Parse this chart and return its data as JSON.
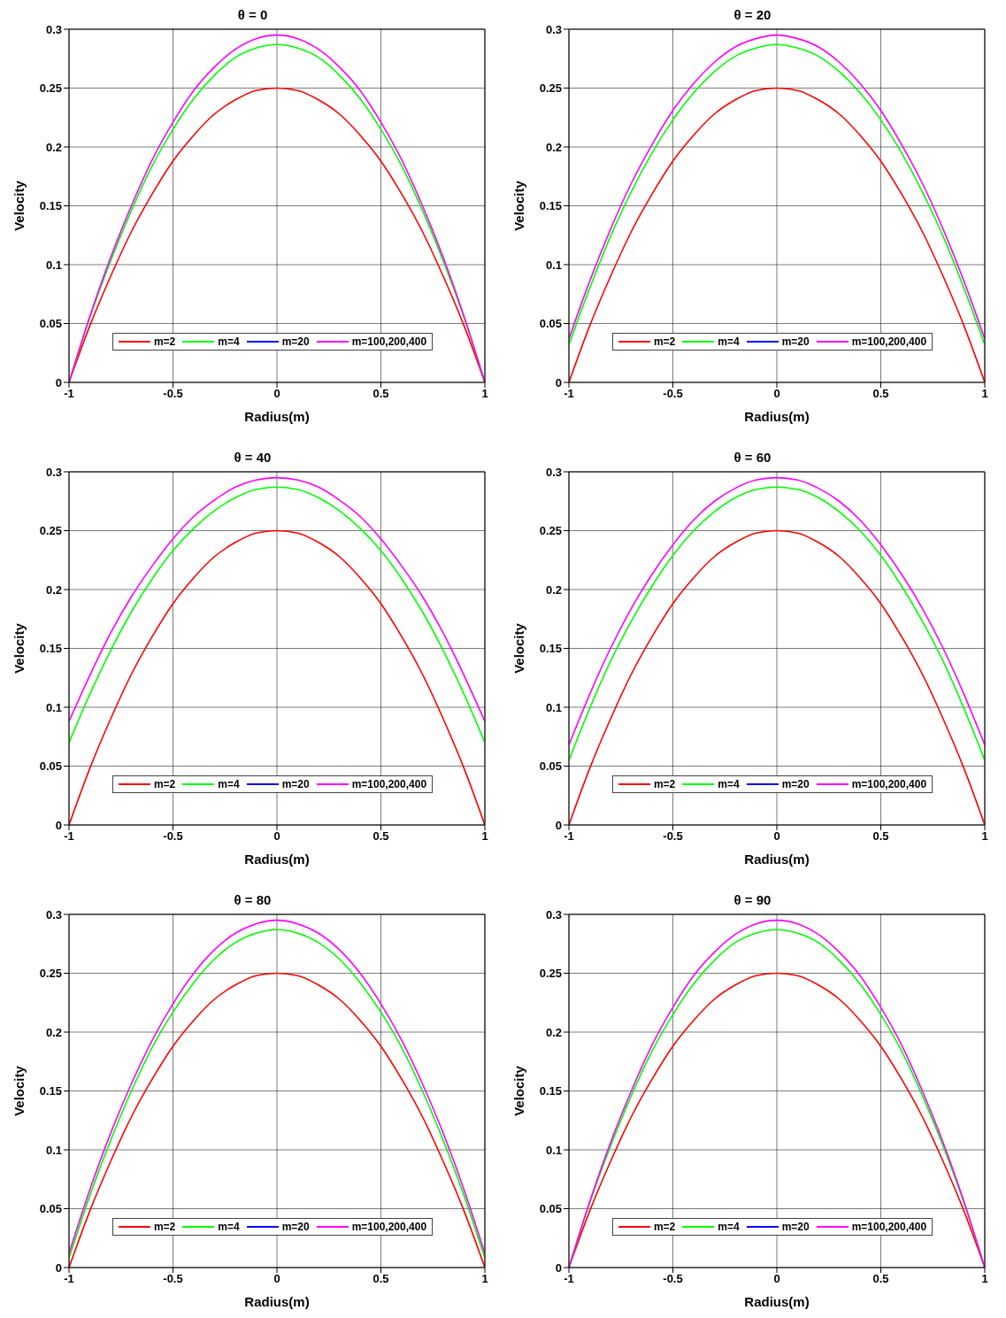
{
  "chart_data": [
    {
      "type": "line",
      "title": "θ = 0",
      "xlabel": "Radius(m)",
      "ylabel": "Velocity",
      "xlim": [
        -1,
        1
      ],
      "xticks": [
        -1,
        -0.5,
        0,
        0.5,
        1
      ],
      "ylim": [
        0,
        0.3
      ],
      "yticks": [
        0,
        0.05,
        0.1,
        0.15,
        0.2,
        0.25,
        0.3
      ],
      "grid": true,
      "legend": "bottom",
      "marker": "none",
      "line_style": "solid",
      "x": [
        -1,
        -0.9,
        -0.8,
        -0.7,
        -0.6,
        -0.5,
        -0.4,
        -0.3,
        -0.2,
        -0.1,
        0,
        0.1,
        0.2,
        0.3,
        0.4,
        0.5,
        0.6,
        0.7,
        0.8,
        0.9,
        1
      ],
      "series": [
        {
          "name": "m=2",
          "color": "#ff0000",
          "values": [
            0,
            0.048,
            0.09,
            0.128,
            0.16,
            0.188,
            0.21,
            0.228,
            0.24,
            0.248,
            0.25,
            0.248,
            0.24,
            0.228,
            0.21,
            0.188,
            0.16,
            0.128,
            0.09,
            0.048,
            0
          ]
        },
        {
          "name": "m=4",
          "color": "#00ff00",
          "values": [
            0,
            0.055,
            0.103,
            0.146,
            0.184,
            0.215,
            0.241,
            0.261,
            0.276,
            0.284,
            0.287,
            0.284,
            0.276,
            0.261,
            0.241,
            0.215,
            0.184,
            0.146,
            0.103,
            0.055,
            0
          ]
        },
        {
          "name": "m=20",
          "color": "#0000ff",
          "values": [
            null,
            null,
            null,
            null,
            null,
            null,
            null,
            null,
            null,
            null,
            null,
            null,
            null,
            null,
            null,
            null,
            null,
            null,
            null,
            null,
            null
          ]
        },
        {
          "name": "m=100,200,400",
          "color": "#ff00ff",
          "values": [
            0,
            0.056,
            0.106,
            0.15,
            0.189,
            0.221,
            0.248,
            0.268,
            0.283,
            0.292,
            0.295,
            0.292,
            0.283,
            0.268,
            0.248,
            0.221,
            0.189,
            0.15,
            0.106,
            0.056,
            0
          ]
        }
      ]
    },
    {
      "type": "line",
      "title": "θ = 20",
      "xlabel": "Radius(m)",
      "ylabel": "Velocity",
      "xlim": [
        -1,
        1
      ],
      "xticks": [
        -1,
        -0.5,
        0,
        0.5,
        1
      ],
      "ylim": [
        0,
        0.3
      ],
      "yticks": [
        0,
        0.05,
        0.1,
        0.15,
        0.2,
        0.25,
        0.3
      ],
      "grid": true,
      "legend": "bottom",
      "marker": "none",
      "line_style": "solid",
      "x": [
        -1,
        -0.9,
        -0.8,
        -0.7,
        -0.6,
        -0.5,
        -0.4,
        -0.3,
        -0.2,
        -0.1,
        0,
        0.1,
        0.2,
        0.3,
        0.4,
        0.5,
        0.6,
        0.7,
        0.8,
        0.9,
        1
      ],
      "series": [
        {
          "name": "m=2",
          "color": "#ff0000",
          "values": [
            0,
            0.048,
            0.09,
            0.128,
            0.16,
            0.188,
            0.21,
            0.228,
            0.24,
            0.248,
            0.25,
            0.248,
            0.24,
            0.228,
            0.21,
            0.188,
            0.16,
            0.128,
            0.09,
            0.048,
            0
          ]
        },
        {
          "name": "m=4",
          "color": "#00ff00",
          "values": [
            0.032,
            0.08,
            0.124,
            0.162,
            0.195,
            0.223,
            0.246,
            0.264,
            0.277,
            0.284,
            0.287,
            0.284,
            0.277,
            0.264,
            0.246,
            0.223,
            0.195,
            0.162,
            0.124,
            0.08,
            0.032
          ]
        },
        {
          "name": "m=20",
          "color": "#0000ff",
          "values": [
            null,
            null,
            null,
            null,
            null,
            null,
            null,
            null,
            null,
            null,
            null,
            null,
            null,
            null,
            null,
            null,
            null,
            null,
            null,
            null,
            null
          ]
        },
        {
          "name": "m=100,200,400",
          "color": "#ff00ff",
          "values": [
            0.037,
            0.086,
            0.13,
            0.169,
            0.202,
            0.231,
            0.254,
            0.272,
            0.285,
            0.292,
            0.295,
            0.292,
            0.285,
            0.272,
            0.254,
            0.231,
            0.202,
            0.169,
            0.13,
            0.086,
            0.037
          ]
        }
      ]
    },
    {
      "type": "line",
      "title": "θ = 40",
      "xlabel": "Radius(m)",
      "ylabel": "Velocity",
      "xlim": [
        -1,
        1
      ],
      "xticks": [
        -1,
        -0.5,
        0,
        0.5,
        1
      ],
      "ylim": [
        0,
        0.3
      ],
      "yticks": [
        0,
        0.05,
        0.1,
        0.15,
        0.2,
        0.25,
        0.3
      ],
      "grid": true,
      "legend": "bottom",
      "marker": "none",
      "line_style": "solid",
      "x": [
        -1,
        -0.9,
        -0.8,
        -0.7,
        -0.6,
        -0.5,
        -0.4,
        -0.3,
        -0.2,
        -0.1,
        0,
        0.1,
        0.2,
        0.3,
        0.4,
        0.5,
        0.6,
        0.7,
        0.8,
        0.9,
        1
      ],
      "series": [
        {
          "name": "m=2",
          "color": "#ff0000",
          "values": [
            0,
            0.048,
            0.09,
            0.128,
            0.16,
            0.188,
            0.21,
            0.228,
            0.24,
            0.248,
            0.25,
            0.248,
            0.24,
            0.228,
            0.21,
            0.188,
            0.16,
            0.128,
            0.09,
            0.048,
            0
          ]
        },
        {
          "name": "m=4",
          "color": "#00ff00",
          "values": [
            0.07,
            0.111,
            0.148,
            0.181,
            0.209,
            0.233,
            0.252,
            0.267,
            0.278,
            0.285,
            0.287,
            0.285,
            0.278,
            0.267,
            0.252,
            0.233,
            0.209,
            0.181,
            0.148,
            0.111,
            0.07
          ]
        },
        {
          "name": "m=20",
          "color": "#0000ff",
          "values": [
            null,
            null,
            null,
            null,
            null,
            null,
            null,
            null,
            null,
            null,
            null,
            null,
            null,
            null,
            null,
            null,
            null,
            null,
            null,
            null,
            null
          ]
        },
        {
          "name": "m=100,200,400",
          "color": "#ff00ff",
          "values": [
            0.088,
            0.127,
            0.163,
            0.194,
            0.22,
            0.243,
            0.262,
            0.276,
            0.287,
            0.293,
            0.295,
            0.293,
            0.287,
            0.276,
            0.262,
            0.243,
            0.22,
            0.194,
            0.163,
            0.127,
            0.088
          ]
        }
      ]
    },
    {
      "type": "line",
      "title": "θ = 60",
      "xlabel": "Radius(m)",
      "ylabel": "Velocity",
      "xlim": [
        -1,
        1
      ],
      "xticks": [
        -1,
        -0.5,
        0,
        0.5,
        1
      ],
      "ylim": [
        0,
        0.3
      ],
      "yticks": [
        0,
        0.05,
        0.1,
        0.15,
        0.2,
        0.25,
        0.3
      ],
      "grid": true,
      "legend": "bottom",
      "marker": "none",
      "line_style": "solid",
      "x": [
        -1,
        -0.9,
        -0.8,
        -0.7,
        -0.6,
        -0.5,
        -0.4,
        -0.3,
        -0.2,
        -0.1,
        0,
        0.1,
        0.2,
        0.3,
        0.4,
        0.5,
        0.6,
        0.7,
        0.8,
        0.9,
        1
      ],
      "series": [
        {
          "name": "m=2",
          "color": "#ff0000",
          "values": [
            0,
            0.048,
            0.09,
            0.128,
            0.16,
            0.188,
            0.21,
            0.228,
            0.24,
            0.248,
            0.25,
            0.248,
            0.24,
            0.228,
            0.21,
            0.188,
            0.16,
            0.128,
            0.09,
            0.048,
            0
          ]
        },
        {
          "name": "m=4",
          "color": "#00ff00",
          "values": [
            0.055,
            0.099,
            0.139,
            0.173,
            0.203,
            0.229,
            0.25,
            0.266,
            0.278,
            0.285,
            0.287,
            0.285,
            0.278,
            0.266,
            0.25,
            0.229,
            0.203,
            0.173,
            0.139,
            0.099,
            0.055
          ]
        },
        {
          "name": "m=20",
          "color": "#0000ff",
          "values": [
            null,
            null,
            null,
            null,
            null,
            null,
            null,
            null,
            null,
            null,
            null,
            null,
            null,
            null,
            null,
            null,
            null,
            null,
            null,
            null,
            null
          ]
        },
        {
          "name": "m=100,200,400",
          "color": "#ff00ff",
          "values": [
            0.068,
            0.111,
            0.15,
            0.184,
            0.213,
            0.238,
            0.259,
            0.275,
            0.286,
            0.293,
            0.295,
            0.293,
            0.286,
            0.275,
            0.259,
            0.238,
            0.213,
            0.184,
            0.15,
            0.111,
            0.068
          ]
        }
      ]
    },
    {
      "type": "line",
      "title": "θ = 80",
      "xlabel": "Radius(m)",
      "ylabel": "Velocity",
      "xlim": [
        -1,
        1
      ],
      "xticks": [
        -1,
        -0.5,
        0,
        0.5,
        1
      ],
      "ylim": [
        0,
        0.3
      ],
      "yticks": [
        0,
        0.05,
        0.1,
        0.15,
        0.2,
        0.25,
        0.3
      ],
      "grid": true,
      "legend": "bottom",
      "marker": "none",
      "line_style": "solid",
      "x": [
        -1,
        -0.9,
        -0.8,
        -0.7,
        -0.6,
        -0.5,
        -0.4,
        -0.3,
        -0.2,
        -0.1,
        0,
        0.1,
        0.2,
        0.3,
        0.4,
        0.5,
        0.6,
        0.7,
        0.8,
        0.9,
        1
      ],
      "series": [
        {
          "name": "m=2",
          "color": "#ff0000",
          "values": [
            0,
            0.048,
            0.09,
            0.128,
            0.16,
            0.188,
            0.21,
            0.228,
            0.24,
            0.248,
            0.25,
            0.248,
            0.24,
            0.228,
            0.21,
            0.188,
            0.16,
            0.128,
            0.09,
            0.048,
            0
          ]
        },
        {
          "name": "m=4",
          "color": "#00ff00",
          "values": [
            0.008,
            0.061,
            0.108,
            0.15,
            0.187,
            0.217,
            0.242,
            0.262,
            0.276,
            0.284,
            0.287,
            0.284,
            0.276,
            0.262,
            0.242,
            0.217,
            0.187,
            0.15,
            0.108,
            0.061,
            0.008
          ]
        },
        {
          "name": "m=20",
          "color": "#0000ff",
          "values": [
            null,
            null,
            null,
            null,
            null,
            null,
            null,
            null,
            null,
            null,
            null,
            null,
            null,
            null,
            null,
            null,
            null,
            null,
            null,
            null,
            null
          ]
        },
        {
          "name": "m=100,200,400",
          "color": "#ff00ff",
          "values": [
            0.012,
            0.066,
            0.114,
            0.156,
            0.193,
            0.224,
            0.25,
            0.27,
            0.284,
            0.292,
            0.295,
            0.292,
            0.284,
            0.27,
            0.25,
            0.224,
            0.193,
            0.156,
            0.114,
            0.066,
            0.012
          ]
        }
      ]
    },
    {
      "type": "line",
      "title": "θ = 90",
      "xlabel": "Radius(m)",
      "ylabel": "Velocity",
      "xlim": [
        -1,
        1
      ],
      "xticks": [
        -1,
        -0.5,
        0,
        0.5,
        1
      ],
      "ylim": [
        0,
        0.3
      ],
      "yticks": [
        0,
        0.05,
        0.1,
        0.15,
        0.2,
        0.25,
        0.3
      ],
      "grid": true,
      "legend": "bottom",
      "marker": "none",
      "line_style": "solid",
      "x": [
        -1,
        -0.9,
        -0.8,
        -0.7,
        -0.6,
        -0.5,
        -0.4,
        -0.3,
        -0.2,
        -0.1,
        0,
        0.1,
        0.2,
        0.3,
        0.4,
        0.5,
        0.6,
        0.7,
        0.8,
        0.9,
        1
      ],
      "series": [
        {
          "name": "m=2",
          "color": "#ff0000",
          "values": [
            0,
            0.048,
            0.09,
            0.128,
            0.16,
            0.188,
            0.21,
            0.228,
            0.24,
            0.248,
            0.25,
            0.248,
            0.24,
            0.228,
            0.21,
            0.188,
            0.16,
            0.128,
            0.09,
            0.048,
            0
          ]
        },
        {
          "name": "m=4",
          "color": "#00ff00",
          "values": [
            0,
            0.055,
            0.103,
            0.146,
            0.184,
            0.215,
            0.241,
            0.261,
            0.276,
            0.284,
            0.287,
            0.284,
            0.276,
            0.261,
            0.241,
            0.215,
            0.184,
            0.146,
            0.103,
            0.055,
            0
          ]
        },
        {
          "name": "m=20",
          "color": "#0000ff",
          "values": [
            null,
            null,
            null,
            null,
            null,
            null,
            null,
            null,
            null,
            null,
            null,
            null,
            null,
            null,
            null,
            null,
            null,
            null,
            null,
            null,
            null
          ]
        },
        {
          "name": "m=100,200,400",
          "color": "#ff00ff",
          "values": [
            0,
            0.056,
            0.106,
            0.15,
            0.189,
            0.221,
            0.248,
            0.268,
            0.283,
            0.292,
            0.295,
            0.292,
            0.283,
            0.268,
            0.248,
            0.221,
            0.189,
            0.15,
            0.106,
            0.056,
            0
          ]
        }
      ]
    }
  ]
}
